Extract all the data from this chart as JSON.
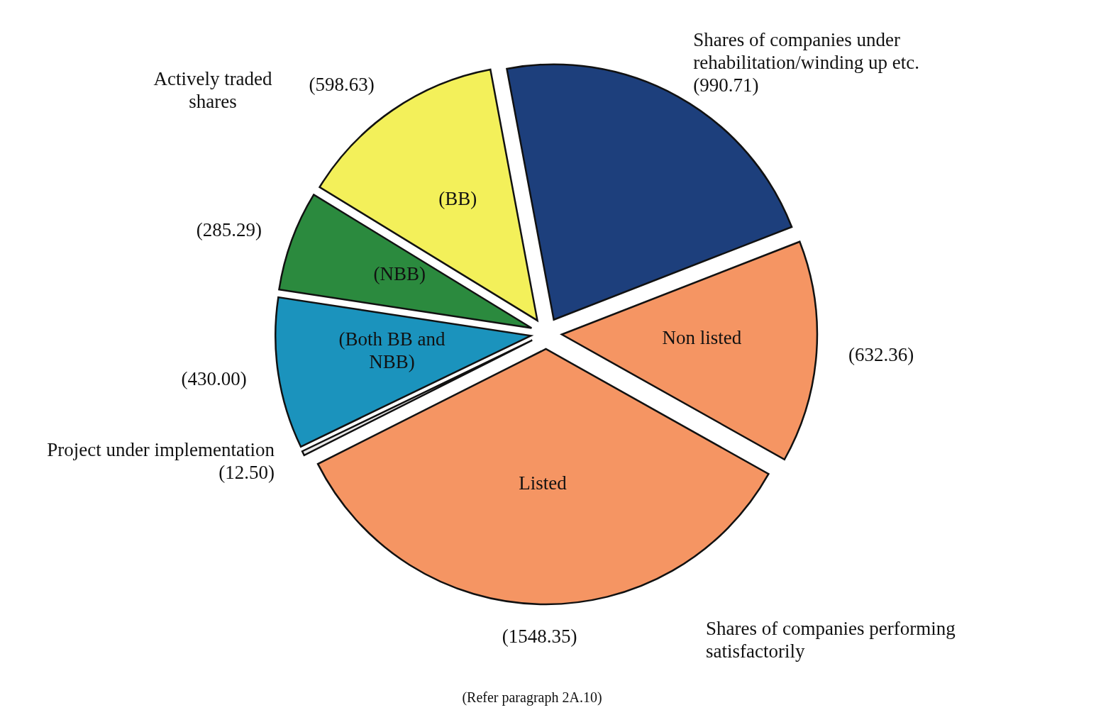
{
  "chart_data": {
    "type": "pie",
    "categories": [
      "Shares of companies under rehabilitation/winding up etc.",
      "Non listed",
      "Listed",
      "Project under implementation",
      "(Both BB and NBB)",
      "(NBB)",
      "(BB)"
    ],
    "values": [
      990.71,
      632.36,
      1548.35,
      12.5,
      430.0,
      285.29,
      598.63
    ],
    "value_labels": [
      "(990.71)",
      "(632.36)",
      "(1548.35)",
      "(12.50)",
      "(430.00)",
      "(285.29)",
      "(598.63)"
    ],
    "colors": [
      "#1d3f7c",
      "#f59563",
      "#f59563",
      "#e8e8e8",
      "#1b93bd",
      "#2b8a3e",
      "#f3f05a"
    ],
    "annotations": [
      "Actively traded shares",
      "Shares of companies performing satisfactorily",
      "(Refer paragraph 2A.10)"
    ]
  }
}
